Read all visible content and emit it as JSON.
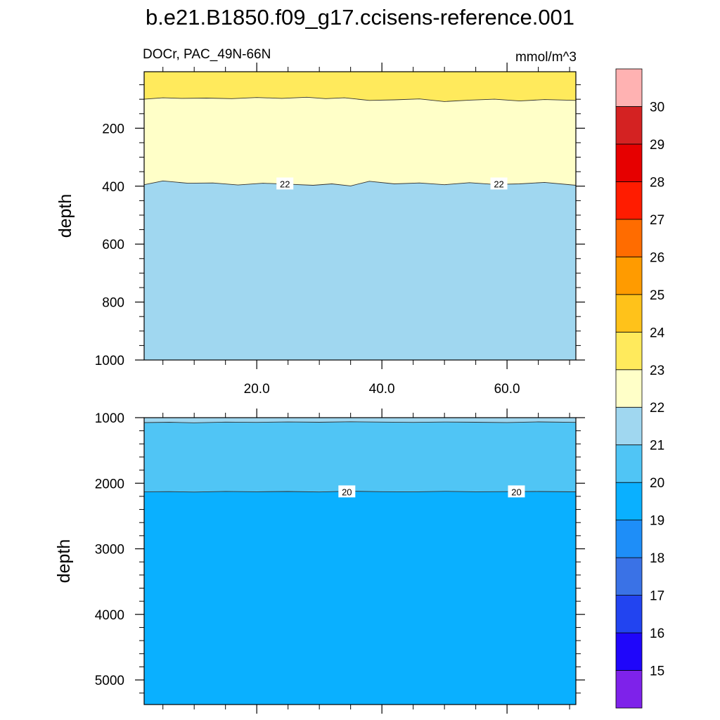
{
  "title": "b.e21.B1850.f09_g17.ccisens-reference.001",
  "left_label": "DOCr, PAC_49N-66N",
  "right_label": "mmol/m^3",
  "chart_data": [
    {
      "type": "contour",
      "panel": "upper",
      "xlabel": "",
      "ylabel": "depth",
      "xlim": [
        2,
        71
      ],
      "ylim": [
        1000,
        5
      ],
      "x_ticks": [
        20,
        40,
        60
      ],
      "x_tick_labels": [
        "20.0",
        "40.0",
        "60.0"
      ],
      "y_ticks": [
        200,
        400,
        600,
        800,
        1000
      ],
      "y_tick_labels": [
        "200",
        "400",
        "600",
        "800",
        "1000"
      ],
      "fill_bands": [
        {
          "range": [
            23,
            24
          ],
          "color": "#ffea5c",
          "depth_top": 5,
          "depth_bottom": 100
        },
        {
          "range": [
            22,
            23
          ],
          "color": "#ffffc8",
          "depth_top": 100,
          "depth_bottom": 395
        },
        {
          "range": [
            21,
            22
          ],
          "color": "#a0d7f0",
          "depth_top": 395,
          "depth_bottom": 1000
        }
      ],
      "contour_lines": [
        {
          "level": 23,
          "x": [
            2,
            5,
            8,
            12,
            16,
            20,
            24,
            28,
            31,
            34,
            38,
            42,
            46,
            50,
            54,
            58,
            62,
            66,
            71
          ],
          "depth": [
            100,
            95,
            97,
            96,
            98,
            94,
            97,
            93,
            98,
            95,
            104,
            102,
            99,
            108,
            103,
            100,
            106,
            101,
            104
          ]
        },
        {
          "level": 22,
          "x": [
            2,
            5,
            9,
            13,
            17,
            21,
            25,
            29,
            32,
            35,
            38,
            42,
            46,
            50,
            54,
            58,
            62,
            66,
            71
          ],
          "depth": [
            395,
            382,
            390,
            389,
            396,
            390,
            393,
            397,
            392,
            399,
            383,
            392,
            389,
            395,
            388,
            394,
            392,
            387,
            397
          ]
        }
      ],
      "contour_labels": [
        {
          "text": "22",
          "x": 24.5,
          "depth": 392
        },
        {
          "text": "22",
          "x": 58.7,
          "depth": 392
        }
      ]
    },
    {
      "type": "contour",
      "panel": "lower",
      "xlabel": "",
      "ylabel": "depth",
      "xlim": [
        2,
        71
      ],
      "ylim": [
        5375,
        1000
      ],
      "y_ticks": [
        1000,
        2000,
        3000,
        4000,
        5000
      ],
      "y_tick_labels": [
        "1000",
        "2000",
        "3000",
        "4000",
        "5000"
      ],
      "fill_bands": [
        {
          "range": [
            21,
            22
          ],
          "color": "#a0d7f0",
          "depth_top": 1000,
          "depth_bottom": 1070
        },
        {
          "range": [
            20,
            21
          ],
          "color": "#50c5f5",
          "depth_top": 1070,
          "depth_bottom": 2130
        },
        {
          "range": [
            19,
            20
          ],
          "color": "#0ab0ff",
          "depth_top": 2130,
          "depth_bottom": 5375
        }
      ],
      "contour_lines": [
        {
          "level": 21,
          "x": [
            2,
            6,
            10,
            15,
            20,
            25,
            30,
            35,
            40,
            45,
            50,
            55,
            60,
            65,
            71
          ],
          "depth": [
            1075,
            1070,
            1078,
            1068,
            1072,
            1065,
            1070,
            1062,
            1068,
            1072,
            1066,
            1070,
            1074,
            1064,
            1072
          ]
        },
        {
          "level": 20,
          "x": [
            2,
            6,
            10,
            15,
            20,
            25,
            30,
            35,
            40,
            45,
            50,
            55,
            60,
            65,
            71
          ],
          "depth": [
            2130,
            2128,
            2135,
            2125,
            2130,
            2126,
            2133,
            2122,
            2129,
            2132,
            2124,
            2130,
            2128,
            2126,
            2131
          ]
        }
      ],
      "contour_labels": [
        {
          "text": "20",
          "x": 34.4,
          "depth": 2130
        },
        {
          "text": "20",
          "x": 61.5,
          "depth": 2130
        }
      ]
    }
  ],
  "colorbar": {
    "tick_labels": [
      "15",
      "16",
      "17",
      "18",
      "19",
      "20",
      "21",
      "22",
      "23",
      "24",
      "25",
      "26",
      "27",
      "28",
      "29",
      "30"
    ],
    "colors": [
      "#7e22ea",
      "#1f06fa",
      "#2244f0",
      "#3a72e6",
      "#1e8ef8",
      "#0ab0ff",
      "#50c5f5",
      "#a0d7f0",
      "#ffffc8",
      "#ffea5c",
      "#ffc21a",
      "#ff9b00",
      "#ff6c00",
      "#ff1c00",
      "#e60000",
      "#d42222",
      "#ffb2b2"
    ]
  }
}
